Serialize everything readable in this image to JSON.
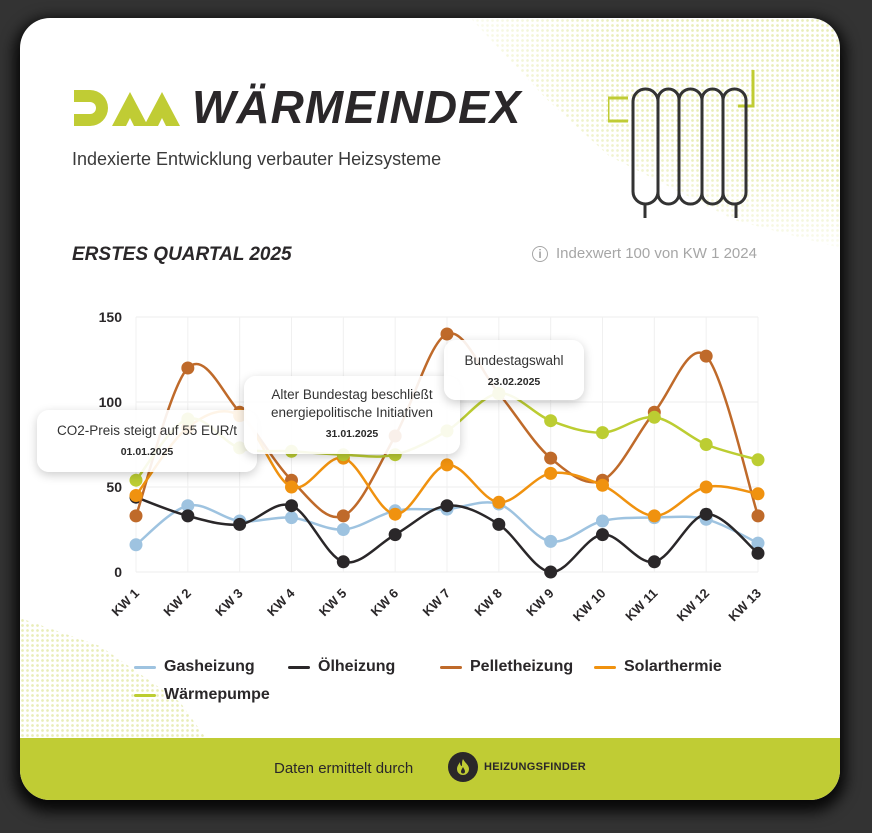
{
  "header": {
    "logo_text": "DAA",
    "title": "WÄRMEINDEX",
    "subtitle": "Indexierte Entwicklung verbauter Heizsysteme",
    "brand_color": "#c0cc34",
    "dark_color": "#2a2729"
  },
  "section": {
    "quarter_title": "ERSTES QUARTAL 2025",
    "index_note": "Indexwert 100 von KW 1 2024",
    "info_icon": "info-circle-icon"
  },
  "tooltips": [
    {
      "title": "CO2-Preis steigt auf 55 EUR/t",
      "date": "01.01.2025"
    },
    {
      "title_line1": "Alter Bundestag beschließt",
      "title_line2": "energiepolitische Initiativen",
      "date": "31.01.2025"
    },
    {
      "title": "Bundestagswahl",
      "date": "23.02.2025"
    }
  ],
  "legend": [
    {
      "name": "Gasheizung",
      "color": "#9ec3e0"
    },
    {
      "name": "Ölheizung",
      "color": "#2a2729"
    },
    {
      "name": "Pelletheizung",
      "color": "#bf6a2a"
    },
    {
      "name": "Solarthermie",
      "color": "#f0920f"
    },
    {
      "name": "Wärmepumpe",
      "color": "#bccd32"
    }
  ],
  "footer": {
    "text": "Daten ermittelt durch",
    "brand": "HEIZUNGSFINDER",
    "brand_icon": "flame-icon"
  },
  "chart_data": {
    "type": "line",
    "title": "ERSTES QUARTAL 2025",
    "subtitle": "Indexwert 100 von KW 1 2024",
    "xlabel": "",
    "ylabel": "",
    "ylim": [
      0,
      150
    ],
    "yticks": [
      0,
      50,
      100,
      150
    ],
    "grid": true,
    "legend_position": "bottom",
    "categories": [
      "KW 1",
      "KW 2",
      "KW 3",
      "KW 4",
      "KW 5",
      "KW 6",
      "KW 7",
      "KW 8",
      "KW 9",
      "KW 10",
      "KW 11",
      "KW 12",
      "KW 13"
    ],
    "series": [
      {
        "name": "Gasheizung",
        "color": "#9ec3e0",
        "values": [
          16,
          39,
          30,
          32,
          25,
          36,
          37,
          40,
          18,
          30,
          32,
          31,
          17
        ]
      },
      {
        "name": "Ölheizung",
        "color": "#2a2729",
        "values": [
          44,
          33,
          28,
          39,
          6,
          22,
          39,
          28,
          0,
          22,
          6,
          34,
          11
        ]
      },
      {
        "name": "Pelletheizung",
        "color": "#bf6a2a",
        "values": [
          33,
          120,
          94,
          54,
          33,
          80,
          140,
          105,
          67,
          54,
          94,
          127,
          33
        ]
      },
      {
        "name": "Solarthermie",
        "color": "#f0920f",
        "values": [
          45,
          85,
          92,
          50,
          67,
          34,
          63,
          41,
          58,
          51,
          33,
          50,
          46
        ]
      },
      {
        "name": "Wärmepumpe",
        "color": "#bccd32",
        "values": [
          54,
          90,
          73,
          71,
          69,
          69,
          83,
          105,
          89,
          82,
          91,
          75,
          66
        ]
      }
    ],
    "annotations": [
      {
        "text": "CO2-Preis steigt auf 55 EUR/t",
        "date": "01.01.2025",
        "x": "KW 1"
      },
      {
        "text": "Alter Bundestag beschließt energiepolitische Initiativen",
        "date": "31.01.2025",
        "x": "KW 5"
      },
      {
        "text": "Bundestagswahl",
        "date": "23.02.2025",
        "x": "KW 8"
      }
    ]
  }
}
